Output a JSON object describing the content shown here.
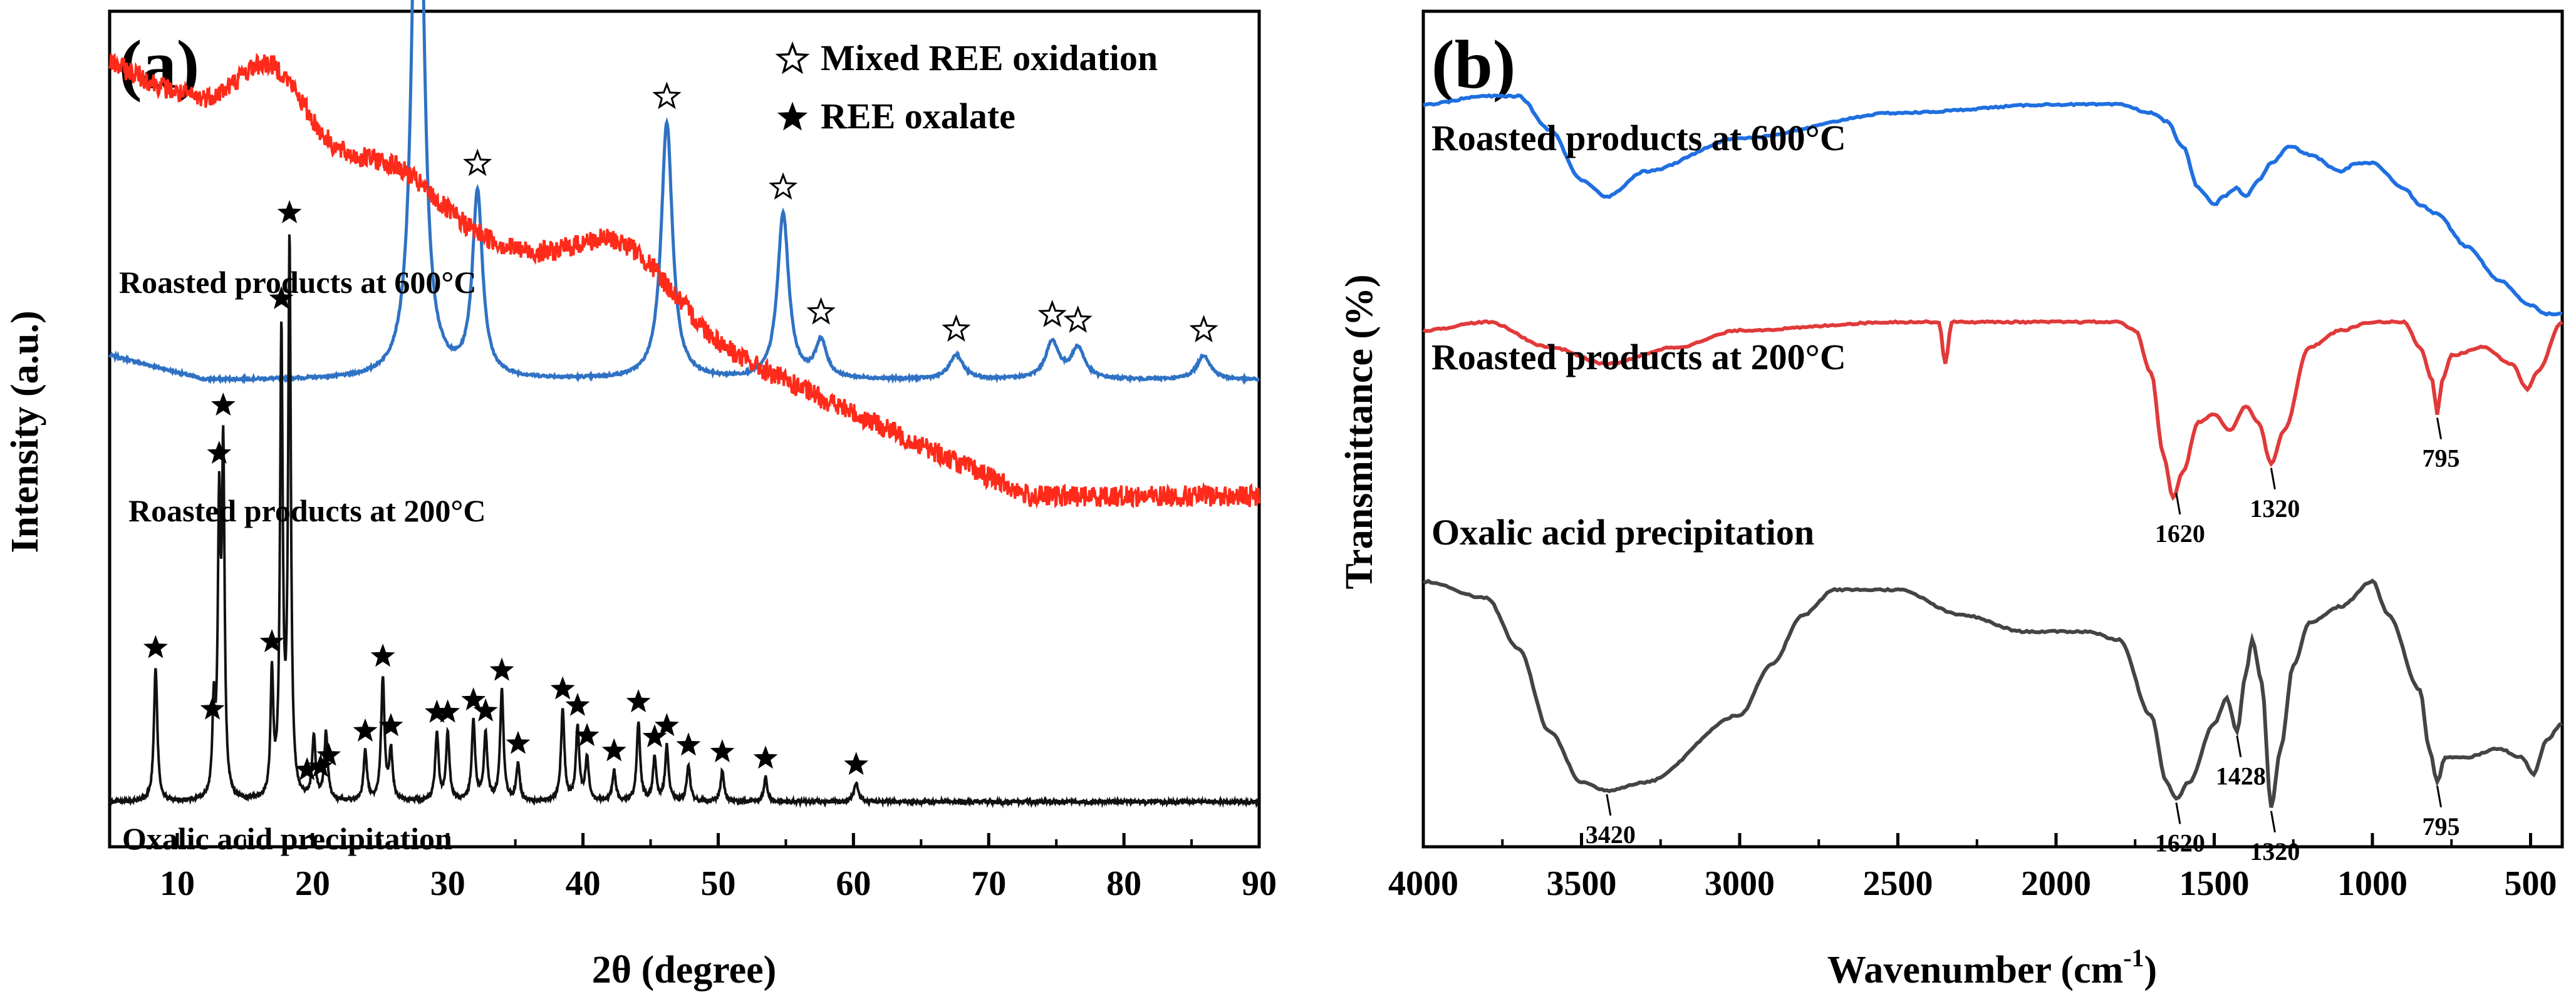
{
  "chart_data": [
    {
      "panel": "(a)",
      "type": "line",
      "xlabel": "2θ (degree)",
      "ylabel": "Intensity (a.u.)",
      "xlim": [
        5,
        90
      ],
      "xticks": [
        10,
        20,
        30,
        40,
        50,
        60,
        70,
        80,
        90
      ],
      "yticks_shown": false,
      "legend": {
        "placement": "top-right",
        "entries": [
          {
            "symbol": "open-star",
            "label": "Mixed REE oxidation"
          },
          {
            "symbol": "filled-star",
            "label": "REE oxalate"
          }
        ]
      },
      "series": [
        {
          "name": "Roasted products at 600°C",
          "color": "#2f72c4",
          "baseline": 0.74,
          "peaks": [
            {
              "x": 27.8,
              "h": 1.15,
              "w": 0.45
            },
            {
              "x": 32.2,
              "h": 0.3,
              "w": 0.45
            },
            {
              "x": 46.2,
              "h": 0.42,
              "w": 0.5
            },
            {
              "x": 54.8,
              "h": 0.27,
              "w": 0.5
            },
            {
              "x": 57.6,
              "h": 0.06,
              "w": 0.5
            },
            {
              "x": 67.6,
              "h": 0.04,
              "w": 0.6
            },
            {
              "x": 74.7,
              "h": 0.06,
              "w": 0.6
            },
            {
              "x": 76.6,
              "h": 0.05,
              "w": 0.6
            },
            {
              "x": 85.9,
              "h": 0.04,
              "w": 0.6
            }
          ],
          "markers": [
            27.8,
            32.2,
            46.2,
            54.8,
            57.6,
            67.6,
            74.7,
            76.6,
            85.9
          ]
        },
        {
          "name": "Roasted products at 200°C",
          "color": "#ff2a1a",
          "broad_humps": [
            {
              "x": 17,
              "h": 0.12,
              "w": 3.5
            },
            {
              "x": 26,
              "h": 0.05,
              "w": 4
            },
            {
              "x": 43,
              "h": 0.1,
              "w": 5
            }
          ],
          "start": 1.26,
          "end": 0.55
        },
        {
          "name": "Oxalic acid precipitation",
          "color": "#111111",
          "baseline": 0.05,
          "peaks": [
            {
              "x": 8.4,
              "h": 0.22,
              "w": 0.15
            },
            {
              "x": 12.7,
              "h": 0.14,
              "w": 0.12
            },
            {
              "x": 13.1,
              "h": 0.45,
              "w": 0.12
            },
            {
              "x": 13.4,
              "h": 0.55,
              "w": 0.12
            },
            {
              "x": 17.0,
              "h": 0.2,
              "w": 0.12
            },
            {
              "x": 17.7,
              "h": 0.75,
              "w": 0.12
            },
            {
              "x": 18.3,
              "h": 0.9,
              "w": 0.12
            },
            {
              "x": 20.1,
              "h": 0.1,
              "w": 0.15
            },
            {
              "x": 21.0,
              "h": 0.11,
              "w": 0.15
            },
            {
              "x": 23.9,
              "h": 0.08,
              "w": 0.15
            },
            {
              "x": 25.2,
              "h": 0.2,
              "w": 0.15
            },
            {
              "x": 25.8,
              "h": 0.08,
              "w": 0.15
            },
            {
              "x": 29.2,
              "h": 0.11,
              "w": 0.15
            },
            {
              "x": 30.0,
              "h": 0.11,
              "w": 0.15
            },
            {
              "x": 31.9,
              "h": 0.13,
              "w": 0.15
            },
            {
              "x": 32.8,
              "h": 0.11,
              "w": 0.15
            },
            {
              "x": 34.0,
              "h": 0.18,
              "w": 0.15
            },
            {
              "x": 35.2,
              "h": 0.06,
              "w": 0.15
            },
            {
              "x": 38.5,
              "h": 0.15,
              "w": 0.15
            },
            {
              "x": 39.6,
              "h": 0.12,
              "w": 0.15
            },
            {
              "x": 40.3,
              "h": 0.07,
              "w": 0.15
            },
            {
              "x": 42.3,
              "h": 0.05,
              "w": 0.15
            },
            {
              "x": 44.1,
              "h": 0.13,
              "w": 0.15
            },
            {
              "x": 45.3,
              "h": 0.07,
              "w": 0.15
            },
            {
              "x": 46.2,
              "h": 0.09,
              "w": 0.15
            },
            {
              "x": 47.8,
              "h": 0.06,
              "w": 0.15
            },
            {
              "x": 50.3,
              "h": 0.05,
              "w": 0.15
            },
            {
              "x": 53.5,
              "h": 0.04,
              "w": 0.15
            },
            {
              "x": 60.2,
              "h": 0.03,
              "w": 0.2
            }
          ],
          "markers": [
            8.4,
            12.6,
            13.1,
            13.4,
            17.0,
            17.7,
            18.3,
            19.6,
            20.6,
            21.2,
            23.9,
            25.2,
            25.8,
            29.2,
            30.0,
            31.9,
            32.8,
            34.0,
            35.2,
            38.5,
            39.6,
            40.3,
            42.3,
            44.1,
            45.3,
            46.2,
            47.8,
            50.3,
            53.5,
            60.2
          ]
        }
      ]
    },
    {
      "panel": "(b)",
      "type": "line",
      "xlabel": "Wavenumber (cm",
      "xlabel_sup": "-1",
      "xlabel_close": ")",
      "ylabel": "Transmittance (%)",
      "xlim": [
        4000,
        400
      ],
      "xticks": [
        4000,
        3500,
        3000,
        2500,
        2000,
        1500,
        1000,
        500
      ],
      "yticks_shown": false,
      "series": [
        {
          "name": "Roasted products at 600°C",
          "color": "#1f6fe0",
          "points": [
            [
              4000,
              0.87
            ],
            [
              3800,
              0.88
            ],
            [
              3700,
              0.88
            ],
            [
              3600,
              0.84
            ],
            [
              3500,
              0.78
            ],
            [
              3420,
              0.76
            ],
            [
              3300,
              0.79
            ],
            [
              3000,
              0.83
            ],
            [
              2500,
              0.86
            ],
            [
              2000,
              0.87
            ],
            [
              1800,
              0.87
            ],
            [
              1700,
              0.86
            ],
            [
              1650,
              0.85
            ],
            [
              1600,
              0.82
            ],
            [
              1550,
              0.77
            ],
            [
              1500,
              0.75
            ],
            [
              1470,
              0.76
            ],
            [
              1430,
              0.77
            ],
            [
              1400,
              0.76
            ],
            [
              1360,
              0.78
            ],
            [
              1320,
              0.8
            ],
            [
              1260,
              0.82
            ],
            [
              1200,
              0.81
            ],
            [
              1100,
              0.79
            ],
            [
              1050,
              0.8
            ],
            [
              1000,
              0.8
            ],
            [
              900,
              0.77
            ],
            [
              850,
              0.75
            ],
            [
              800,
              0.74
            ],
            [
              700,
              0.7
            ],
            [
              600,
              0.66
            ],
            [
              500,
              0.63
            ],
            [
              450,
              0.62
            ],
            [
              400,
              0.62
            ]
          ]
        },
        {
          "name": "Roasted products at 200°C",
          "color": "#e03a3a",
          "points": [
            [
              4000,
              0.6
            ],
            [
              3800,
              0.61
            ],
            [
              3600,
              0.58
            ],
            [
              3420,
              0.56
            ],
            [
              3200,
              0.58
            ],
            [
              3000,
              0.6
            ],
            [
              2500,
              0.61
            ],
            [
              2370,
              0.61
            ],
            [
              2350,
              0.56
            ],
            [
              2330,
              0.61
            ],
            [
              2000,
              0.61
            ],
            [
              1800,
              0.61
            ],
            [
              1750,
              0.6
            ],
            [
              1700,
              0.55
            ],
            [
              1660,
              0.45
            ],
            [
              1630,
              0.4
            ],
            [
              1600,
              0.43
            ],
            [
              1550,
              0.49
            ],
            [
              1500,
              0.5
            ],
            [
              1450,
              0.48
            ],
            [
              1400,
              0.51
            ],
            [
              1360,
              0.49
            ],
            [
              1320,
              0.44
            ],
            [
              1280,
              0.48
            ],
            [
              1200,
              0.58
            ],
            [
              1100,
              0.6
            ],
            [
              1000,
              0.61
            ],
            [
              900,
              0.61
            ],
            [
              850,
              0.58
            ],
            [
              810,
              0.54
            ],
            [
              795,
              0.5
            ],
            [
              780,
              0.54
            ],
            [
              750,
              0.57
            ],
            [
              650,
              0.58
            ],
            [
              560,
              0.56
            ],
            [
              510,
              0.53
            ],
            [
              480,
              0.55
            ],
            [
              400,
              0.61
            ]
          ]
        },
        {
          "name": "Oxalic acid precipitation",
          "color": "#444444",
          "points": [
            [
              4000,
              0.3
            ],
            [
              3800,
              0.28
            ],
            [
              3700,
              0.22
            ],
            [
              3600,
              0.12
            ],
            [
              3500,
              0.06
            ],
            [
              3420,
              0.05
            ],
            [
              3300,
              0.06
            ],
            [
              3000,
              0.14
            ],
            [
              2900,
              0.2
            ],
            [
              2800,
              0.26
            ],
            [
              2700,
              0.29
            ],
            [
              2500,
              0.29
            ],
            [
              2300,
              0.26
            ],
            [
              2100,
              0.24
            ],
            [
              1900,
              0.24
            ],
            [
              1800,
              0.23
            ],
            [
              1700,
              0.14
            ],
            [
              1650,
              0.06
            ],
            [
              1620,
              0.04
            ],
            [
              1580,
              0.06
            ],
            [
              1500,
              0.13
            ],
            [
              1460,
              0.16
            ],
            [
              1428,
              0.12
            ],
            [
              1400,
              0.19
            ],
            [
              1380,
              0.23
            ],
            [
              1350,
              0.18
            ],
            [
              1320,
              0.03
            ],
            [
              1290,
              0.1
            ],
            [
              1250,
              0.2
            ],
            [
              1200,
              0.25
            ],
            [
              1100,
              0.27
            ],
            [
              1000,
              0.3
            ],
            [
              950,
              0.26
            ],
            [
              850,
              0.17
            ],
            [
              820,
              0.1
            ],
            [
              795,
              0.06
            ],
            [
              770,
              0.09
            ],
            [
              700,
              0.09
            ],
            [
              600,
              0.1
            ],
            [
              530,
              0.09
            ],
            [
              490,
              0.07
            ],
            [
              450,
              0.11
            ],
            [
              400,
              0.13
            ]
          ]
        }
      ],
      "annotations": [
        {
          "series": 1,
          "x": 1620,
          "label": "1620"
        },
        {
          "series": 1,
          "x": 1320,
          "label": "1320"
        },
        {
          "series": 1,
          "x": 795,
          "label": "795"
        },
        {
          "series": 2,
          "x": 3420,
          "label": "3420"
        },
        {
          "series": 2,
          "x": 1620,
          "label": "1620"
        },
        {
          "series": 2,
          "x": 1428,
          "label": "1428"
        },
        {
          "series": 2,
          "x": 1320,
          "label": "1320"
        },
        {
          "series": 2,
          "x": 795,
          "label": "795"
        }
      ]
    }
  ]
}
